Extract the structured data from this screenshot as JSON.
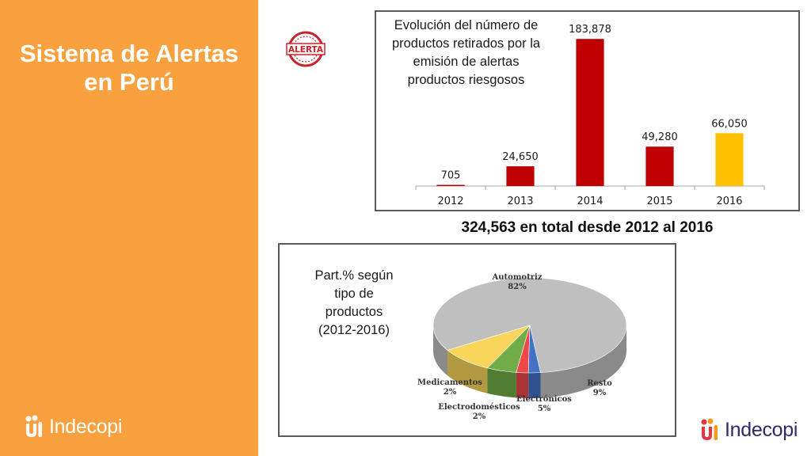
{
  "slide": {
    "title_lines": [
      "Sistema de Alertas",
      "en Perú"
    ],
    "logo_text": "Indecopi",
    "badge_text": "ALERTA",
    "total_text": "324,563 en total desde 2012 al 2016"
  },
  "colors": {
    "sidebar": "#f9a03f",
    "bar_default": "#c00000",
    "bar_highlight": "#ffc000",
    "logo_red": "#e2373f",
    "logo_orange": "#f59a23",
    "logo_navy": "#2f2a6b"
  },
  "chart_data": [
    {
      "type": "bar",
      "title_lines": [
        "Evolución del número de",
        "productos retirados por la",
        "emisión de alertas",
        "productos riesgosos"
      ],
      "categories": [
        "2012",
        "2013",
        "2014",
        "2015",
        "2016"
      ],
      "values": [
        705,
        24650,
        183878,
        49280,
        66050
      ],
      "value_labels": [
        "705",
        "24,650",
        "183,878",
        "49,280",
        "66,050"
      ],
      "bar_colors": [
        "#c00000",
        "#c00000",
        "#c00000",
        "#c00000",
        "#ffc000"
      ],
      "ylim": [
        0,
        190000
      ],
      "grid": false,
      "legend": "none"
    },
    {
      "type": "pie",
      "title_lines": [
        "Part.% según",
        "tipo de",
        "productos",
        "(2012-2016)"
      ],
      "slices": [
        {
          "name": "Automotriz",
          "value": 82,
          "label": "82%",
          "color": "#bfbfbf"
        },
        {
          "name": "Resto",
          "value": 9,
          "label": "9%",
          "color": "#f9d65b"
        },
        {
          "name": "Electrónicos",
          "value": 5,
          "label": "5%",
          "color": "#70ad47"
        },
        {
          "name": "Electrodomésticos",
          "value": 2,
          "label": "2%",
          "color": "#f04848"
        },
        {
          "name": "Medicamentos",
          "value": 2,
          "label": "2%",
          "color": "#4472c4"
        }
      ],
      "style": "3d",
      "legend": "none"
    }
  ]
}
